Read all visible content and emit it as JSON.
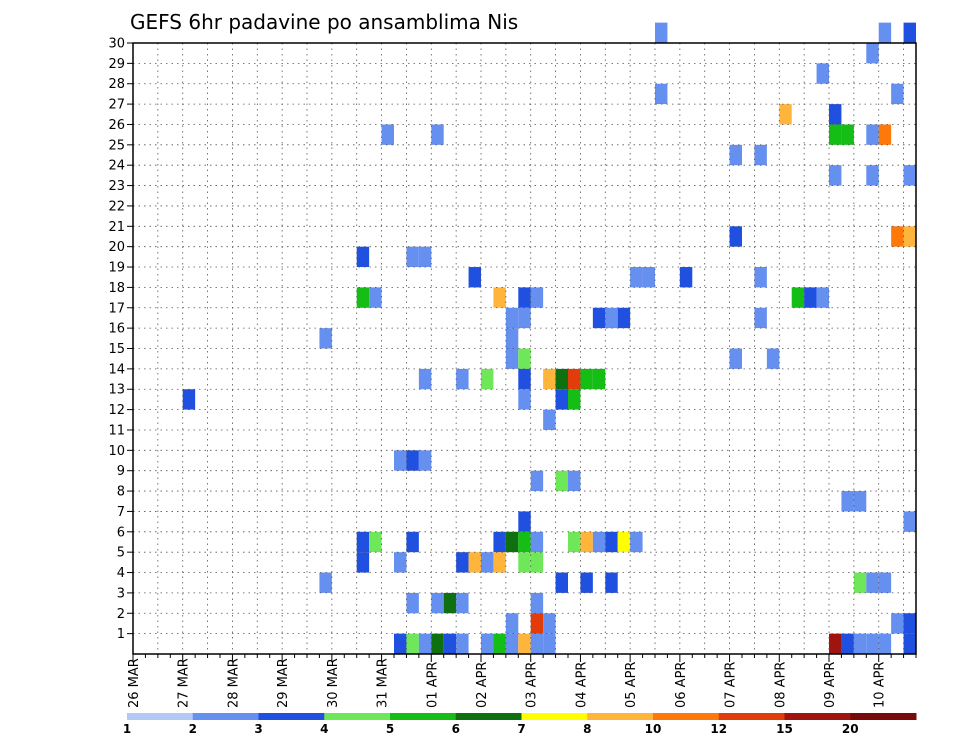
{
  "chart_data": {
    "type": "heatmap",
    "title": "GEFS 6hr padavine po ansamblima Nis",
    "x_unit": "6h steps (4 per day)",
    "x_tick_labels": [
      "26 MAR",
      "27 MAR",
      "28 MAR",
      "29 MAR",
      "30 MAR",
      "31 MAR",
      "01 APR",
      "02 APR",
      "03 APR",
      "04 APR",
      "05 APR",
      "06 APR",
      "07 APR",
      "08 APR",
      "09 APR",
      "10 APR"
    ],
    "y_tick_labels": [
      "1",
      "2",
      "3",
      "4",
      "5",
      "6",
      "7",
      "8",
      "9",
      "10",
      "11",
      "12",
      "13",
      "14",
      "15",
      "16",
      "17",
      "18",
      "19",
      "20",
      "21",
      "22",
      "23",
      "24",
      "25",
      "26",
      "27",
      "28",
      "29",
      "30"
    ],
    "ylim": [
      0,
      30
    ],
    "grid": true,
    "legend": {
      "placement": "bottom",
      "colors": [
        "#b4c8f5",
        "#6690f0",
        "#2050e0",
        "#6ee858",
        "#14be14",
        "#0e700e",
        "#ffff00",
        "#ffb43c",
        "#ff780a",
        "#e13c0a",
        "#a01410",
        "#780a0a"
      ],
      "labels": [
        "1",
        "2",
        "3",
        "4",
        "5",
        "6",
        "7",
        "8",
        "10",
        "12",
        "15",
        "20"
      ]
    },
    "cells": [
      [
        42,
        30,
        1
      ],
      [
        60,
        30,
        1
      ],
      [
        62,
        30,
        2
      ],
      [
        59,
        29,
        1
      ],
      [
        55,
        28,
        1
      ],
      [
        61,
        27,
        1
      ],
      [
        42,
        27,
        1
      ],
      [
        52,
        26,
        7
      ],
      [
        56,
        26,
        2
      ],
      [
        20,
        25,
        1
      ],
      [
        24,
        25,
        1
      ],
      [
        56,
        25,
        4
      ],
      [
        57,
        25,
        4
      ],
      [
        59,
        25,
        1
      ],
      [
        60,
        25,
        8
      ],
      [
        48,
        24,
        1
      ],
      [
        50,
        24,
        1
      ],
      [
        56,
        23,
        1
      ],
      [
        59,
        23,
        1
      ],
      [
        62,
        23,
        1
      ],
      [
        48,
        20,
        2
      ],
      [
        61,
        20,
        8
      ],
      [
        62,
        20,
        7
      ],
      [
        18,
        19,
        2
      ],
      [
        22,
        19,
        1
      ],
      [
        23,
        19,
        1
      ],
      [
        40,
        18,
        1
      ],
      [
        41,
        18,
        1
      ],
      [
        44,
        18,
        2
      ],
      [
        50,
        18,
        1
      ],
      [
        27,
        18,
        2
      ],
      [
        29,
        17,
        7
      ],
      [
        32,
        17,
        1
      ],
      [
        31,
        17,
        2
      ],
      [
        53,
        17,
        4
      ],
      [
        54,
        17,
        2
      ],
      [
        55,
        17,
        1
      ],
      [
        18,
        17,
        4
      ],
      [
        19,
        17,
        1
      ],
      [
        37,
        16,
        2
      ],
      [
        38,
        16,
        1
      ],
      [
        39,
        16,
        2
      ],
      [
        30,
        16,
        1
      ],
      [
        31,
        16,
        1
      ],
      [
        50,
        16,
        1
      ],
      [
        15,
        15,
        1
      ],
      [
        30,
        15,
        1
      ],
      [
        30,
        14,
        1
      ],
      [
        31,
        14,
        3
      ],
      [
        48,
        14,
        1
      ],
      [
        51,
        14,
        1
      ],
      [
        23,
        13,
        1
      ],
      [
        26,
        13,
        1
      ],
      [
        28,
        13,
        3
      ],
      [
        31,
        13,
        2
      ],
      [
        33,
        13,
        7
      ],
      [
        34,
        13,
        5
      ],
      [
        35,
        13,
        9
      ],
      [
        36,
        13,
        4
      ],
      [
        37,
        13,
        4
      ],
      [
        4,
        12,
        2
      ],
      [
        34,
        12,
        2
      ],
      [
        35,
        12,
        4
      ],
      [
        31,
        12,
        1
      ],
      [
        33,
        11,
        1
      ],
      [
        21,
        9,
        1
      ],
      [
        22,
        9,
        2
      ],
      [
        23,
        9,
        1
      ],
      [
        34,
        8,
        3
      ],
      [
        35,
        8,
        1
      ],
      [
        32,
        8,
        1
      ],
      [
        57,
        7,
        1
      ],
      [
        58,
        7,
        1
      ],
      [
        31,
        6,
        2
      ],
      [
        62,
        6,
        1
      ],
      [
        18,
        5,
        2
      ],
      [
        19,
        5,
        3
      ],
      [
        22,
        5,
        2
      ],
      [
        29,
        5,
        2
      ],
      [
        30,
        5,
        5
      ],
      [
        31,
        5,
        4
      ],
      [
        32,
        5,
        1
      ],
      [
        35,
        5,
        3
      ],
      [
        36,
        5,
        7
      ],
      [
        37,
        5,
        1
      ],
      [
        38,
        5,
        2
      ],
      [
        39,
        5,
        6
      ],
      [
        40,
        5,
        1
      ],
      [
        18,
        4,
        2
      ],
      [
        21,
        4,
        1
      ],
      [
        26,
        4,
        2
      ],
      [
        27,
        4,
        7
      ],
      [
        28,
        4,
        1
      ],
      [
        29,
        4,
        7
      ],
      [
        31,
        4,
        3
      ],
      [
        32,
        4,
        3
      ],
      [
        15,
        3,
        1
      ],
      [
        34,
        3,
        2
      ],
      [
        36,
        3,
        2
      ],
      [
        38,
        3,
        2
      ],
      [
        58,
        3,
        3
      ],
      [
        59,
        3,
        1
      ],
      [
        60,
        3,
        1
      ],
      [
        22,
        2,
        1
      ],
      [
        24,
        2,
        1
      ],
      [
        25,
        2,
        5
      ],
      [
        26,
        2,
        1
      ],
      [
        32,
        2,
        1
      ],
      [
        30,
        1,
        1
      ],
      [
        32,
        1,
        9
      ],
      [
        33,
        1,
        1
      ],
      [
        61,
        1,
        1
      ],
      [
        62,
        1,
        2
      ],
      [
        21,
        0,
        2
      ],
      [
        22,
        0,
        3
      ],
      [
        23,
        0,
        1
      ],
      [
        24,
        0,
        5
      ],
      [
        25,
        0,
        2
      ],
      [
        26,
        0,
        1
      ],
      [
        28,
        0,
        1
      ],
      [
        29,
        0,
        4
      ],
      [
        30,
        0,
        1
      ],
      [
        31,
        0,
        7
      ],
      [
        32,
        0,
        1
      ],
      [
        33,
        0,
        1
      ],
      [
        56,
        0,
        10
      ],
      [
        57,
        0,
        2
      ],
      [
        58,
        0,
        1
      ],
      [
        59,
        0,
        1
      ],
      [
        60,
        0,
        1
      ],
      [
        62,
        0,
        2
      ]
    ]
  }
}
